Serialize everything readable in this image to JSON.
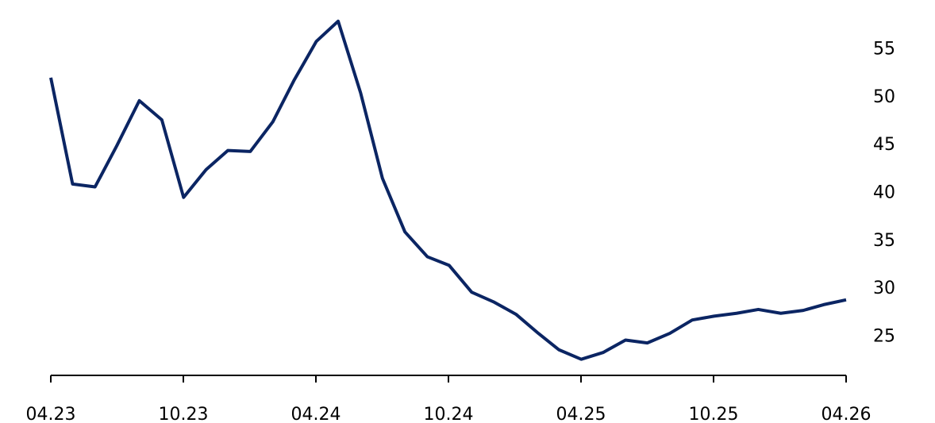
{
  "chart_data": {
    "type": "line",
    "title": "",
    "xlabel": "",
    "ylabel": "",
    "x_tick_labels": [
      "04.23",
      "10.23",
      "04.24",
      "10.24",
      "04.25",
      "10.25",
      "04.26"
    ],
    "y_ticks": [
      25,
      30,
      35,
      40,
      45,
      50,
      55
    ],
    "y_tick_labels": [
      "25",
      "30",
      "35",
      "40",
      "45",
      "50",
      "55"
    ],
    "xlim": [
      "2023-04-01",
      "2026-04-01"
    ],
    "ylim": [
      21,
      58
    ],
    "y_axis_position": "right",
    "grid": false,
    "legend": "none",
    "series": [
      {
        "color": "#0b2563",
        "x": [
          "2023-04-01",
          "2023-05-01",
          "2023-06-01",
          "2023-07-01",
          "2023-08-01",
          "2023-09-01",
          "2023-10-01",
          "2023-11-01",
          "2023-12-01",
          "2024-01-01",
          "2024-02-01",
          "2024-03-01",
          "2024-04-01",
          "2024-05-01",
          "2024-06-01",
          "2024-07-01",
          "2024-08-01",
          "2024-09-01",
          "2024-10-01",
          "2024-11-01",
          "2024-12-01",
          "2025-01-01",
          "2025-02-01",
          "2025-03-01",
          "2025-04-01",
          "2025-05-01",
          "2025-06-01",
          "2025-07-01",
          "2025-08-01",
          "2025-09-01",
          "2025-10-01",
          "2025-11-01",
          "2025-12-01",
          "2026-01-01",
          "2026-02-01",
          "2026-03-01",
          "2026-04-01"
        ],
        "values": [
          51.9,
          40.8,
          40.5,
          44.8,
          49.5,
          47.5,
          39.4,
          42.3,
          44.3,
          44.2,
          47.3,
          51.6,
          55.7,
          57.8,
          50.3,
          41.4,
          35.8,
          33.2,
          32.3,
          29.5,
          28.5,
          27.2,
          25.2,
          23.5,
          22.5,
          23.2,
          24.5,
          24.2,
          25.2,
          26.6,
          27.0,
          27.3,
          27.7,
          27.3,
          27.6,
          28.2,
          28.7
        ]
      }
    ]
  }
}
